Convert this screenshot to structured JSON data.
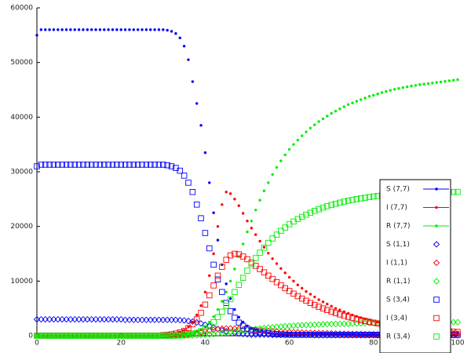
{
  "chart_data": {
    "type": "scatter",
    "x": [
      0,
      1,
      2,
      3,
      4,
      5,
      6,
      7,
      8,
      9,
      10,
      11,
      12,
      13,
      14,
      15,
      16,
      17,
      18,
      19,
      20,
      21,
      22,
      23,
      24,
      25,
      26,
      27,
      28,
      29,
      30,
      31,
      32,
      33,
      34,
      35,
      36,
      37,
      38,
      39,
      40,
      41,
      42,
      43,
      44,
      45,
      46,
      47,
      48,
      49,
      50,
      51,
      52,
      53,
      54,
      55,
      56,
      57,
      58,
      59,
      60,
      61,
      62,
      63,
      64,
      65,
      66,
      67,
      68,
      69,
      70,
      71,
      72,
      73,
      74,
      75,
      76,
      77,
      78,
      79,
      80,
      81,
      82,
      83,
      84,
      85,
      86,
      87,
      88,
      89,
      90,
      91,
      92,
      93,
      94,
      95,
      96,
      97,
      98,
      99,
      100
    ],
    "xlim": [
      0,
      100
    ],
    "xticks": [
      0,
      20,
      40,
      60,
      80,
      100
    ],
    "ylim": [
      0,
      60000
    ],
    "yticks": [
      0,
      10000,
      20000,
      30000,
      40000,
      50000,
      60000
    ],
    "legend": "right",
    "series": [
      {
        "name": "S (7,7)",
        "color": "#0000ff",
        "marker": "dot",
        "values": [
          55000,
          56000,
          56000,
          56000,
          56000,
          56000,
          56000,
          56000,
          56000,
          56000,
          56000,
          56000,
          56000,
          56000,
          56000,
          56000,
          56000,
          56000,
          56000,
          56000,
          56000,
          56000,
          56000,
          56000,
          56000,
          56000,
          56000,
          56000,
          56000,
          56000,
          56000,
          55900,
          55700,
          55300,
          54500,
          53000,
          50500,
          46500,
          42500,
          38500,
          33500,
          28000,
          22500,
          17500,
          13000,
          9500,
          6800,
          4800,
          3400,
          2500,
          1800,
          1300,
          1000,
          800,
          600,
          500,
          400,
          350,
          300,
          250,
          220,
          200,
          200,
          200,
          200,
          200,
          200,
          200,
          200,
          200,
          200,
          200,
          200,
          200,
          200,
          200,
          150,
          150,
          150,
          150,
          150,
          150,
          150,
          150,
          150,
          150,
          150,
          150,
          150,
          150,
          150,
          150,
          150,
          150,
          150,
          150,
          150,
          150,
          150,
          150,
          150
        ]
      },
      {
        "name": "I (7,7)",
        "color": "#ff0000",
        "marker": "dot",
        "values": [
          0,
          0,
          0,
          0,
          0,
          0,
          0,
          0,
          0,
          0,
          0,
          0,
          0,
          0,
          0,
          0,
          0,
          0,
          0,
          0,
          0,
          0,
          0,
          0,
          0,
          0,
          0,
          0,
          0,
          0,
          100,
          150,
          250,
          400,
          650,
          1000,
          1600,
          2500,
          3800,
          5500,
          8000,
          11000,
          15000,
          20000,
          24000,
          26300,
          26000,
          25000,
          23800,
          22400,
          21000,
          19700,
          18500,
          17300,
          16200,
          15100,
          14100,
          13200,
          12300,
          11500,
          10700,
          10000,
          9300,
          8700,
          8100,
          7600,
          7100,
          6600,
          6200,
          5800,
          5400,
          5000,
          4700,
          4400,
          4100,
          3800,
          3550,
          3300,
          3100,
          2900,
          2700,
          2500,
          2350,
          2200,
          2050,
          1900,
          1780,
          1660,
          1550,
          1450,
          1350,
          1260,
          1180,
          1100,
          1030,
          960,
          900,
          840,
          780,
          730,
          680
        ]
      },
      {
        "name": "R (7,7)",
        "color": "#00ee00",
        "marker": "dot",
        "values": [
          0,
          0,
          0,
          0,
          0,
          0,
          0,
          0,
          0,
          0,
          0,
          0,
          0,
          0,
          0,
          0,
          0,
          0,
          0,
          0,
          0,
          0,
          0,
          0,
          0,
          0,
          0,
          0,
          0,
          0,
          0,
          0,
          0,
          0,
          50,
          100,
          200,
          400,
          700,
          1100,
          1700,
          2500,
          3500,
          4800,
          6300,
          8000,
          10000,
          12200,
          14500,
          16800,
          19000,
          21000,
          23000,
          24800,
          26500,
          28000,
          29500,
          30800,
          32000,
          33100,
          34100,
          35000,
          35800,
          36600,
          37300,
          38000,
          38600,
          39200,
          39700,
          40200,
          40700,
          41100,
          41500,
          41900,
          42300,
          42600,
          42900,
          43200,
          43500,
          43800,
          44000,
          44250,
          44500,
          44700,
          44900,
          45100,
          45250,
          45400,
          45550,
          45700,
          45800,
          45950,
          46050,
          46150,
          46250,
          46350,
          46450,
          46550,
          46650,
          46750,
          46850
        ]
      },
      {
        "name": "S (1,1)",
        "color": "#0000ff",
        "marker": "diamond",
        "values": [
          3000,
          3000,
          3000,
          3000,
          3000,
          3000,
          3000,
          3000,
          3000,
          3000,
          3000,
          3000,
          3000,
          3000,
          3000,
          3000,
          3000,
          3000,
          3000,
          3000,
          3000,
          2900,
          2900,
          2900,
          2900,
          2900,
          2900,
          2900,
          2900,
          2900,
          2900,
          2900,
          2900,
          2900,
          2850,
          2800,
          2700,
          2600,
          2450,
          2250,
          2000,
          1750,
          1500,
          1250,
          1000,
          800,
          650,
          500,
          400,
          320,
          250,
          200,
          200,
          200,
          200,
          200,
          150,
          150,
          150,
          150,
          150,
          150,
          150,
          150,
          150,
          150,
          100,
          100,
          100,
          100,
          100,
          100,
          100,
          100,
          100,
          100,
          100,
          100,
          100,
          100,
          100,
          100,
          100,
          100,
          100,
          100,
          100,
          100,
          100,
          100,
          100,
          100,
          100,
          100,
          100,
          100,
          100,
          100,
          100,
          100,
          100
        ]
      },
      {
        "name": "I (1,1)",
        "color": "#ff0000",
        "marker": "diamond",
        "values": [
          20,
          20,
          20,
          20,
          20,
          20,
          20,
          20,
          20,
          20,
          20,
          20,
          20,
          20,
          20,
          20,
          20,
          20,
          20,
          20,
          20,
          20,
          20,
          20,
          20,
          20,
          20,
          20,
          20,
          20,
          20,
          50,
          80,
          120,
          170,
          230,
          300,
          400,
          500,
          650,
          800,
          950,
          1100,
          1200,
          1300,
          1350,
          1350,
          1300,
          1250,
          1200,
          1150,
          1100,
          1050,
          1000,
          950,
          900,
          850,
          800,
          760,
          720,
          680,
          650,
          620,
          590,
          560,
          540,
          520,
          500,
          480,
          460,
          440,
          420,
          400,
          380,
          360,
          345,
          330,
          315,
          300,
          290,
          280,
          270,
          260,
          250,
          240,
          230,
          220,
          210,
          200,
          190,
          180,
          175,
          170,
          165,
          160,
          155,
          150,
          145,
          140,
          135,
          130
        ]
      },
      {
        "name": "R (1,1)",
        "color": "#00ee00",
        "marker": "diamond",
        "values": [
          0,
          0,
          0,
          0,
          0,
          0,
          0,
          0,
          0,
          0,
          0,
          0,
          0,
          0,
          0,
          0,
          0,
          0,
          0,
          0,
          0,
          0,
          0,
          0,
          0,
          0,
          0,
          0,
          0,
          0,
          0,
          0,
          0,
          0,
          0,
          0,
          20,
          50,
          80,
          120,
          170,
          230,
          300,
          380,
          470,
          560,
          660,
          760,
          860,
          960,
          1060,
          1150,
          1240,
          1330,
          1410,
          1490,
          1560,
          1630,
          1690,
          1750,
          1800,
          1850,
          1890,
          1930,
          1970,
          2000,
          2030,
          2060,
          2090,
          2110,
          2130,
          2150,
          2170,
          2190,
          2210,
          2230,
          2250,
          2270,
          2290,
          2300,
          2310,
          2320,
          2330,
          2340,
          2350,
          2360,
          2370,
          2380,
          2390,
          2400,
          2410,
          2420,
          2430,
          2440,
          2450,
          2460,
          2465,
          2470,
          2475,
          2480,
          2485
        ]
      },
      {
        "name": "S (3,4)",
        "color": "#0000ff",
        "marker": "square",
        "values": [
          31000,
          31300,
          31300,
          31300,
          31300,
          31300,
          31300,
          31300,
          31300,
          31300,
          31300,
          31300,
          31300,
          31300,
          31300,
          31300,
          31300,
          31300,
          31300,
          31300,
          31300,
          31300,
          31300,
          31300,
          31300,
          31300,
          31300,
          31300,
          31300,
          31300,
          31300,
          31200,
          31000,
          30700,
          30200,
          29300,
          28000,
          26300,
          24000,
          21500,
          18800,
          16000,
          13000,
          10300,
          8000,
          6000,
          4500,
          3300,
          2400,
          1800,
          1300,
          1000,
          800,
          650,
          520,
          430,
          360,
          300,
          260,
          230,
          200,
          180,
          180,
          180,
          180,
          180,
          180,
          180,
          180,
          180,
          180,
          180,
          180,
          180,
          180,
          180,
          180,
          180,
          180,
          180,
          180,
          150,
          150,
          150,
          150,
          150,
          150,
          150,
          150,
          150,
          150,
          150,
          150,
          150,
          150,
          150,
          150,
          150,
          150,
          150,
          150
        ]
      },
      {
        "name": "I (3,4)",
        "color": "#ff0000",
        "marker": "square",
        "values": [
          30,
          30,
          30,
          30,
          30,
          30,
          30,
          30,
          30,
          30,
          30,
          30,
          30,
          30,
          30,
          30,
          30,
          30,
          30,
          30,
          30,
          30,
          30,
          30,
          30,
          30,
          30,
          30,
          30,
          30,
          100,
          150,
          250,
          400,
          600,
          900,
          1400,
          2100,
          3000,
          4200,
          5700,
          7400,
          9200,
          11000,
          12600,
          13900,
          14700,
          15000,
          14900,
          14500,
          14000,
          13400,
          12800,
          12200,
          11600,
          11000,
          10400,
          9800,
          9250,
          8700,
          8200,
          7700,
          7250,
          6800,
          6400,
          6000,
          5650,
          5300,
          5000,
          4700,
          4400,
          4150,
          3900,
          3650,
          3450,
          3250,
          3050,
          2850,
          2700,
          2550,
          2400,
          2250,
          2100,
          2000,
          1880,
          1770,
          1660,
          1560,
          1470,
          1380,
          1300,
          1220,
          1150,
          1080,
          1010,
          950,
          890,
          840,
          790,
          740,
          700
        ]
      },
      {
        "name": "R (3,4)",
        "color": "#00ee00",
        "marker": "square",
        "values": [
          0,
          0,
          0,
          0,
          0,
          0,
          0,
          0,
          0,
          0,
          0,
          0,
          0,
          0,
          0,
          0,
          0,
          0,
          0,
          0,
          0,
          0,
          0,
          0,
          0,
          0,
          0,
          0,
          0,
          0,
          0,
          0,
          0,
          0,
          50,
          100,
          200,
          350,
          550,
          850,
          1250,
          1800,
          2500,
          3400,
          4400,
          5500,
          6700,
          8000,
          9300,
          10600,
          11900,
          13100,
          14200,
          15200,
          16100,
          17000,
          17800,
          18500,
          19200,
          19800,
          20400,
          20900,
          21350,
          21750,
          22150,
          22500,
          22850,
          23150,
          23450,
          23700,
          23950,
          24150,
          24350,
          24550,
          24700,
          24850,
          25000,
          25130,
          25250,
          25370,
          25480,
          25580,
          25670,
          25750,
          25830,
          25900,
          25960,
          26020,
          26070,
          26120,
          26160,
          26190,
          26220,
          26240,
          26260,
          26270,
          26280,
          26290,
          26300,
          26310,
          26320
        ]
      }
    ]
  }
}
